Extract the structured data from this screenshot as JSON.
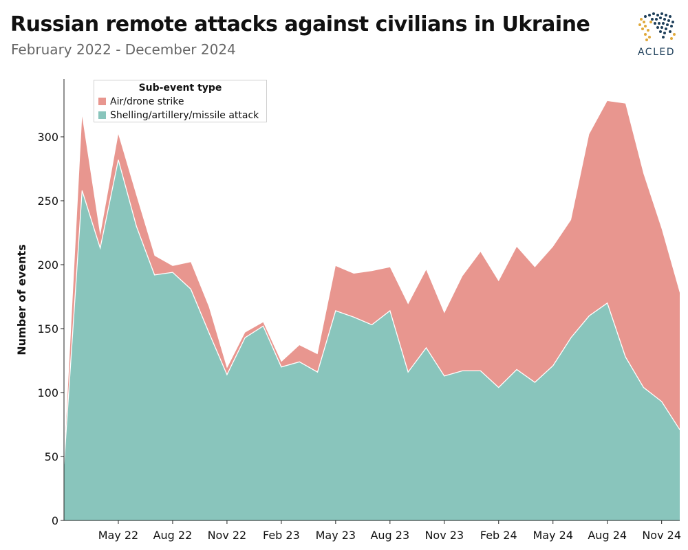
{
  "header": {
    "title": "Russian remote attacks against civilians in Ukraine",
    "subtitle": "February 2022 - December 2024"
  },
  "logo": {
    "text": "ACLED",
    "icon": "world-map-dots-icon",
    "colors": [
      "#1e3f5a",
      "#e0a93b"
    ]
  },
  "legend": {
    "title": "Sub-event type",
    "items": [
      {
        "label": "Air/drone strike",
        "color": "#e8968f"
      },
      {
        "label": "Shelling/artillery/missile attack",
        "color": "#89c5bc"
      }
    ]
  },
  "chart_data": {
    "type": "area",
    "stacked": true,
    "title": "Russian remote attacks against civilians in Ukraine",
    "subtitle": "February 2022 - December 2024",
    "xlabel": "",
    "ylabel": "Number of events",
    "ylim": [
      0,
      340
    ],
    "yticks": [
      0,
      50,
      100,
      150,
      200,
      250,
      300
    ],
    "xticks": [
      {
        "label": "May 22",
        "index": 3
      },
      {
        "label": "Aug 22",
        "index": 6
      },
      {
        "label": "Nov 22",
        "index": 9
      },
      {
        "label": "Feb 23",
        "index": 12
      },
      {
        "label": "May 23",
        "index": 15
      },
      {
        "label": "Aug 23",
        "index": 18
      },
      {
        "label": "Nov 23",
        "index": 21
      },
      {
        "label": "Feb 24",
        "index": 24
      },
      {
        "label": "May 24",
        "index": 27
      },
      {
        "label": "Aug 24",
        "index": 30
      },
      {
        "label": "Nov 24",
        "index": 33
      }
    ],
    "x": [
      "Feb 22",
      "Mar 22",
      "Apr 22",
      "May 22",
      "Jun 22",
      "Jul 22",
      "Aug 22",
      "Sep 22",
      "Oct 22",
      "Nov 22",
      "Dec 22",
      "Jan 23",
      "Feb 23",
      "Mar 23",
      "Apr 23",
      "May 23",
      "Jun 23",
      "Jul 23",
      "Aug 23",
      "Sep 23",
      "Oct 23",
      "Nov 23",
      "Dec 23",
      "Jan 24",
      "Feb 24",
      "Mar 24",
      "Apr 24",
      "May 24",
      "Jun 24",
      "Jul 24",
      "Aug 24",
      "Sep 24",
      "Oct 24",
      "Nov 24",
      "Dec 24"
    ],
    "series": [
      {
        "name": "Shelling/artillery/missile attack",
        "color": "#89c5bc",
        "values": [
          44,
          258,
          213,
          282,
          230,
          192,
          194,
          181,
          147,
          114,
          143,
          152,
          120,
          124,
          116,
          164,
          159,
          153,
          164,
          116,
          135,
          113,
          117,
          117,
          104,
          118,
          108,
          121,
          143,
          160,
          170,
          128,
          104,
          93,
          71
        ]
      },
      {
        "name": "Air/drone strike",
        "color": "#e8968f",
        "values": [
          0,
          58,
          10,
          20,
          24,
          15,
          5,
          21,
          20,
          5,
          4,
          3,
          4,
          13,
          14,
          35,
          34,
          42,
          34,
          53,
          61,
          49,
          74,
          93,
          83,
          96,
          90,
          93,
          92,
          142,
          158,
          198,
          167,
          135,
          107
        ]
      }
    ]
  }
}
